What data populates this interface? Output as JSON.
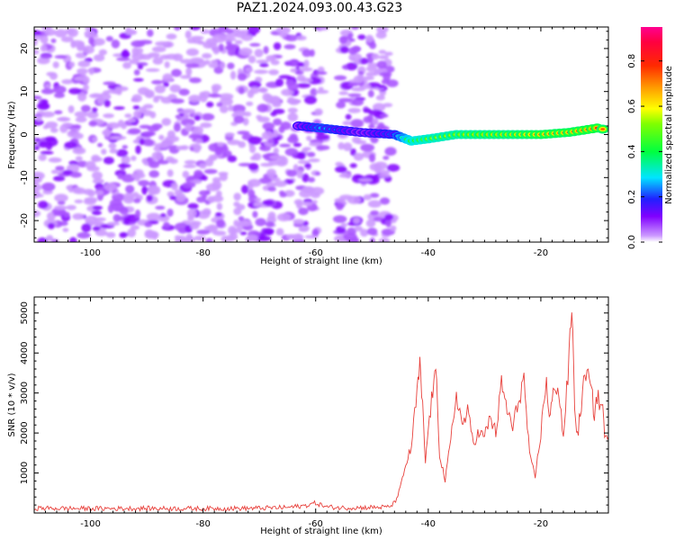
{
  "title": "PAZ1.2024.093.00.43.G23",
  "chart_data": [
    {
      "type": "heatmap",
      "xlabel": "Height of straight line (km)",
      "ylabel": "Frequency (Hz)",
      "xlim": [
        -110,
        -8
      ],
      "ylim": [
        -25,
        25
      ],
      "xticks": [
        -100,
        -80,
        -60,
        -40,
        -20
      ],
      "yticks": [
        -20,
        -10,
        0,
        10,
        20
      ],
      "colorbar": {
        "label": "Normalized spectral amplitude",
        "range": [
          0.0,
          0.95
        ],
        "ticks": [
          "0.0",
          "0.2",
          "0.4",
          "0.6",
          "0.8"
        ],
        "colormap": "gist_rainbow-like (white → purple → blue → cyan → green → yellow → orange → red → magenta)"
      },
      "noise_region": {
        "x": [
          -110,
          -46
        ],
        "gap_x": [
          -58.5,
          -56
        ],
        "level": 0.1
      },
      "signal_track": [
        {
          "x": -63,
          "f": 2.0,
          "amp": 0.15
        },
        {
          "x": -59,
          "f": 1.5,
          "amp": 0.3
        },
        {
          "x": -52,
          "f": 0.5,
          "amp": 0.15
        },
        {
          "x": -46,
          "f": 0.0,
          "amp": 0.25
        },
        {
          "x": -43,
          "f": -1.5,
          "amp": 0.55
        },
        {
          "x": -40,
          "f": -1.0,
          "amp": 0.6
        },
        {
          "x": -35,
          "f": 0.0,
          "amp": 0.65
        },
        {
          "x": -30,
          "f": 0.0,
          "amp": 0.7
        },
        {
          "x": -25,
          "f": 0.0,
          "amp": 0.72
        },
        {
          "x": -20,
          "f": 0.0,
          "amp": 0.8
        },
        {
          "x": -15,
          "f": 0.5,
          "amp": 0.8
        },
        {
          "x": -10,
          "f": 1.5,
          "amp": 0.85
        },
        {
          "x": -8,
          "f": 1.0,
          "amp": 0.7
        }
      ]
    },
    {
      "type": "line",
      "xlabel": "Height of straight line (km)",
      "ylabel": "SNR (10 * v/v)",
      "xlim": [
        -110,
        -8
      ],
      "ylim": [
        0,
        5400
      ],
      "xticks": [
        -100,
        -80,
        -60,
        -40,
        -20
      ],
      "yticks": [
        1000,
        2000,
        3000,
        4000,
        5000
      ],
      "color": "#e8413c",
      "series": [
        {
          "x": [
            -110,
            -100,
            -90,
            -80,
            -70,
            -65,
            -62,
            -60,
            -58,
            -55,
            -50,
            -47,
            -46,
            -45,
            -44,
            -43,
            -42,
            -41.5,
            -41,
            -40.5,
            -40,
            -39,
            -38.5,
            -38,
            -37,
            -36,
            -35,
            -34,
            -33,
            -32,
            -31,
            -30,
            -29,
            -28,
            -27,
            -26,
            -25,
            -24,
            -23,
            -22,
            -21,
            -20,
            -19,
            -18.5,
            -18,
            -17,
            -16,
            -15,
            -14.5,
            -14,
            -13.5,
            -13,
            -12,
            -11,
            -10.5,
            -10,
            -9,
            -8.5,
            -8
          ],
          "y": [
            120,
            110,
            115,
            110,
            120,
            140,
            180,
            250,
            150,
            130,
            140,
            150,
            250,
            600,
            1200,
            1650,
            3000,
            3650,
            2600,
            1250,
            2100,
            3300,
            3300,
            1500,
            800,
            1800,
            3000,
            2200,
            2500,
            1800,
            2000,
            1900,
            2400,
            2000,
            3200,
            2600,
            2100,
            2800,
            3350,
            1400,
            900,
            2000,
            3400,
            2300,
            2800,
            3300,
            1900,
            3800,
            5250,
            2700,
            1900,
            2500,
            3600,
            3000,
            2500,
            2900,
            2600,
            1800,
            1900
          ]
        }
      ]
    }
  ]
}
